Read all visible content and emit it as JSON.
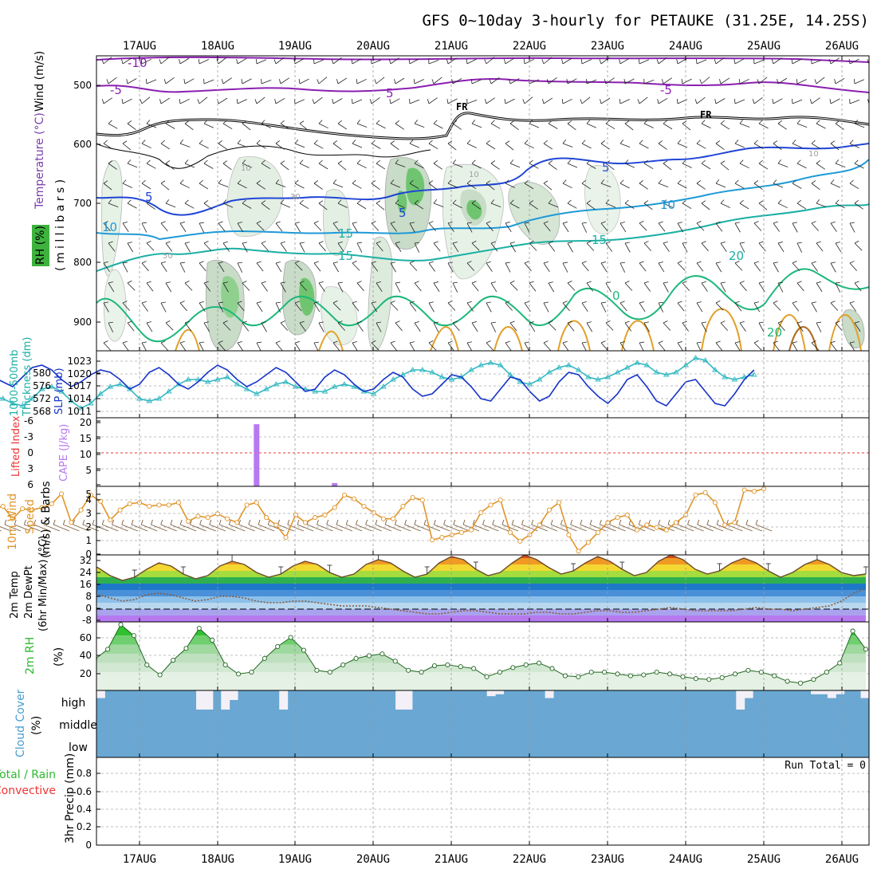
{
  "title": "GFS 0~10day 3-hourly for PETAUKE (31.25E, 14.25S)",
  "dates": [
    "17AUG",
    "18AUG",
    "19AUG",
    "20AUG",
    "21AUG",
    "22AUG",
    "23AUG",
    "24AUG",
    "25AUG",
    "26AUG"
  ],
  "panels": {
    "upper": {
      "ylabel_millibars": "( m i l l i b a r s )",
      "ylabel_wind": "Wind (m/s)",
      "ylabel_temp": "Temperature (°C)",
      "ylabel_rh": "RH (%)",
      "pressure_ticks": [
        "500",
        "600",
        "700",
        "800",
        "900"
      ],
      "fr_label": "FR",
      "contour_labels": [
        "-10",
        "-5",
        "5",
        "-5",
        "5",
        "10",
        "15",
        "10",
        "15",
        "15",
        "20",
        "0",
        "20",
        "0",
        "5",
        "10",
        "30",
        "50",
        "10",
        "10",
        "10"
      ]
    },
    "slp": {
      "ylabel_left_a": "1000-500mb",
      "ylabel_left_b": "Thickness (dm)",
      "ylabel_right": "SLP (mb)",
      "thickness_ticks": [
        "568",
        "572",
        "576",
        "580"
      ],
      "slp_ticks": [
        "1011",
        "1014",
        "1017",
        "1020",
        "1023"
      ]
    },
    "cape": {
      "ylabel_li": "Lifted Index",
      "ylabel_cape": "CAPE (J/kg)",
      "li_ticks": [
        "-6",
        "-3",
        "0",
        "3",
        "6"
      ],
      "cape_ticks": [
        "20",
        "15",
        "10",
        "5"
      ]
    },
    "wind10": {
      "ylabel_a": "10m Wind",
      "ylabel_b": "Speed",
      "ylabel_c": "(m/s) & Barbs",
      "ticks": [
        "0",
        "1",
        "2",
        "3",
        "4",
        "5"
      ]
    },
    "temp2m": {
      "ylabel_a": "2m Temp",
      "ylabel_b": "2m DewPt",
      "ylabel_c": "(6hr Min/Max) (°C)",
      "ticks": [
        "-8",
        "0",
        "8",
        "16",
        "24",
        "32"
      ]
    },
    "rh2m": {
      "ylabel_a": "2m RH",
      "ylabel_b": "(%)",
      "ticks": [
        "20",
        "40",
        "60"
      ]
    },
    "cloud": {
      "ylabel_a": "Cloud Cover",
      "ylabel_b": "(%)",
      "levels": [
        "high",
        "middle",
        "low"
      ]
    },
    "precip": {
      "ylabel_a": "Total / Rain",
      "ylabel_b": "Convective",
      "ylabel_c": "3hr Precip (mm)",
      "ticks": [
        "0",
        "0.2",
        "0.4",
        "0.6",
        "0.8"
      ],
      "run_total": "Run Total = 0"
    }
  },
  "colors": {
    "slp_line": "#1533c9",
    "thickness_line": "#33b8c2",
    "cape_bar": "#b779f0",
    "wind10_line": "#e0952a",
    "dewpoint_line": "#8a5b3a",
    "rh_fill": "#2db82d",
    "cloud_fill": "#6aa7d2",
    "temp_500": "#8a1fb0",
    "freezing": "#000000"
  },
  "chart_data": [
    {
      "type": "line",
      "name": "Sea level pressure",
      "ylabel": "SLP (mb)",
      "ylim": [
        1009,
        1023
      ],
      "values": [
        1015.5,
        1014.0,
        1016.0,
        1017.5,
        1016.5,
        1015.5,
        1017.5,
        1019.5,
        1020.0,
        1019.0,
        1017.0,
        1015.5,
        1016.5,
        1018.0,
        1019.0,
        1018.5,
        1017.0,
        1015.0,
        1016.0,
        1018.5,
        1019.5,
        1018.0,
        1016.0,
        1015.0,
        1016.5,
        1018.5,
        1020.0,
        1019.0,
        1017.0,
        1015.5,
        1016.5,
        1018.0,
        1019.5,
        1018.5,
        1016.5,
        1014.5,
        1015.0,
        1017.5,
        1019.0,
        1018.0,
        1016.0,
        1014.5,
        1015.0,
        1017.0,
        1018.5,
        1017.5,
        1015.0,
        1013.5,
        1014.0,
        1016.0,
        1018.0,
        1017.5,
        1015.5,
        1013.0,
        1012.5,
        1015.0,
        1017.5,
        1017.0,
        1014.5,
        1012.5,
        1013.5,
        1016.5,
        1018.5,
        1018.0,
        1015.5,
        1013.5,
        1012.0,
        1014.0,
        1017.0,
        1018.0,
        1015.5,
        1012.5,
        1011.5,
        1014.0,
        1016.5,
        1017.0,
        1014.5,
        1012.0,
        1011.5,
        1014.0,
        1017.0,
        1019.0
      ]
    },
    {
      "type": "line",
      "name": "1000-500mb thickness",
      "ylabel": "Thickness (dm)",
      "ylim": [
        566,
        580
      ],
      "values": [
        572.5,
        573.0,
        572.0,
        570.5,
        570.0,
        569.0,
        568.5,
        570.0,
        572.0,
        572.5,
        571.5,
        569.5,
        568.0,
        569.0,
        571.0,
        572.5,
        573.0,
        572.0,
        570.0,
        569.5,
        570.0,
        571.5,
        573.0,
        574.0,
        574.0,
        573.5,
        574.0,
        574.5,
        573.0,
        572.0,
        571.0,
        572.0,
        573.0,
        573.5,
        572.5,
        572.0,
        571.5,
        571.5,
        572.5,
        573.0,
        572.5,
        571.5,
        571.0,
        572.5,
        574.0,
        575.0,
        576.0,
        576.0,
        575.5,
        574.5,
        574.0,
        574.5,
        576.0,
        577.0,
        577.5,
        577.0,
        575.0,
        573.5,
        573.0,
        574.0,
        575.5,
        576.5,
        577.0,
        576.0,
        574.5,
        574.0,
        574.5,
        575.5,
        576.5,
        577.5,
        577.0,
        575.5,
        575.0,
        575.5,
        577.0,
        578.5,
        578.0,
        576.0,
        574.5,
        574.0,
        574.5,
        575.0
      ]
    },
    {
      "type": "bar",
      "name": "CAPE",
      "ylabel": "CAPE (J/kg)",
      "ylim": [
        0,
        20
      ],
      "x_step_index": [
        30,
        38
      ],
      "values": [
        19,
        1
      ]
    },
    {
      "type": "line",
      "name": "10m wind speed",
      "ylabel": "(m/s)",
      "ylim": [
        0,
        5.5
      ],
      "values": [
        2.2,
        2.8,
        3.8,
        3.7,
        3.9,
        2.9,
        3.7,
        3.6,
        3.8,
        4.1,
        4.9,
        2.6,
        3.6,
        4.8,
        4.3,
        2.8,
        3.6,
        4.1,
        4.2,
        3.9,
        4.0,
        4.0,
        4.2,
        2.7,
        3.1,
        3.0,
        3.3,
        2.9,
        2.6,
        4.0,
        4.2,
        3.0,
        2.4,
        1.4,
        3.2,
        2.6,
        3.0,
        3.2,
        3.8,
        4.8,
        4.5,
        3.9,
        3.4,
        2.9,
        2.9,
        3.9,
        4.6,
        4.4,
        1.2,
        1.4,
        1.6,
        1.8,
        2.0,
        3.4,
        4.0,
        4.4,
        1.8,
        1.1,
        1.6,
        2.4,
        3.6,
        4.2,
        1.6,
        0.3,
        1.0,
        1.8,
        2.6,
        3.0,
        3.2,
        2.0,
        2.4,
        2.2,
        2.0,
        2.6,
        3.2,
        4.8,
        5.0,
        4.2,
        2.4,
        2.6,
        5.2,
        5.1,
        5.3
      ]
    },
    {
      "type": "area",
      "name": "2m temperature",
      "ylabel": "(°C)",
      "ylim": [
        -8,
        34
      ],
      "values": [
        20,
        18,
        19,
        24,
        27,
        25,
        20,
        17,
        19,
        24,
        28,
        26,
        21,
        18,
        20,
        25,
        29,
        27,
        22,
        19,
        21,
        27,
        30,
        28,
        23,
        20,
        22,
        27,
        30,
        28,
        23,
        20,
        22,
        28,
        31,
        29,
        24,
        20,
        22,
        29,
        33,
        31,
        25,
        21,
        23,
        29,
        34,
        31,
        26,
        22,
        24,
        29,
        33,
        30,
        25,
        21,
        23,
        30,
        34,
        31,
        25,
        22,
        24,
        29,
        32,
        29,
        24,
        20,
        23,
        28,
        31,
        28,
        23,
        21,
        22
      ]
    },
    {
      "type": "line",
      "name": "2m dew point",
      "ylabel": "(°C)",
      "ylim": [
        -8,
        34
      ],
      "values": [
        6,
        4,
        5,
        7,
        8,
        9,
        7,
        5,
        6,
        8,
        9,
        9,
        7,
        5,
        6,
        9,
        10,
        9,
        7,
        5,
        6,
        8,
        8,
        7,
        5,
        4,
        4,
        5,
        5,
        4,
        3,
        2,
        2,
        2,
        1,
        0,
        -1,
        -2,
        -3,
        -3,
        -2,
        -1,
        -1,
        -2,
        -3,
        -3,
        -3,
        -2,
        -2,
        -3,
        -3,
        -2,
        -1,
        -1,
        -2,
        -2,
        -1,
        0,
        1,
        0,
        -1,
        -1,
        -1,
        -1,
        0,
        1,
        0,
        0,
        -1,
        0,
        1,
        2,
        5,
        10,
        13
      ]
    },
    {
      "type": "area",
      "name": "2m relative humidity",
      "ylabel": "(%)",
      "ylim": [
        0,
        75
      ],
      "values": [
        18,
        17,
        30,
        38,
        40,
        39,
        38,
        30,
        19,
        17,
        34,
        45,
        72,
        60,
        28,
        17,
        33,
        46,
        68,
        55,
        28,
        18,
        20,
        35,
        48,
        58,
        44,
        22,
        20,
        28,
        35,
        38,
        40,
        32,
        22,
        20,
        27,
        28,
        26,
        24,
        15,
        20,
        25,
        28,
        30,
        24,
        16,
        15,
        20,
        20,
        18,
        16,
        17,
        20,
        18,
        15,
        13,
        12,
        14,
        18,
        22,
        20,
        16,
        10,
        8,
        12,
        20,
        30,
        65,
        45
      ]
    },
    {
      "type": "bar",
      "name": "High cloud cover gaps",
      "ylabel": "high",
      "ylim": [
        0,
        100
      ],
      "values": [
        40,
        0,
        0,
        0,
        0,
        0,
        0,
        0,
        0,
        0,
        0,
        0,
        100,
        100,
        0,
        100,
        50,
        0,
        0,
        0,
        0,
        0,
        100,
        0,
        0,
        0,
        0,
        0,
        0,
        0,
        0,
        0,
        0,
        0,
        0,
        0,
        100,
        100,
        0,
        0,
        0,
        0,
        0,
        0,
        0,
        0,
        0,
        30,
        20,
        0,
        0,
        0,
        0,
        0,
        40,
        0,
        0,
        0,
        0,
        0,
        0,
        0,
        0,
        0,
        0,
        0,
        0,
        0,
        0,
        0,
        0,
        0,
        0,
        0,
        0,
        0,
        0,
        100,
        40,
        0,
        0,
        0,
        0,
        0,
        0,
        0,
        20,
        20,
        40,
        20,
        0,
        0,
        40
      ]
    },
    {
      "type": "bar",
      "name": "3hr precipitation",
      "ylabel": "3hr Precip (mm)",
      "ylim": [
        0,
        0.9
      ],
      "values": [
        0,
        0,
        0,
        0,
        0,
        0,
        0,
        0,
        0,
        0
      ]
    }
  ]
}
